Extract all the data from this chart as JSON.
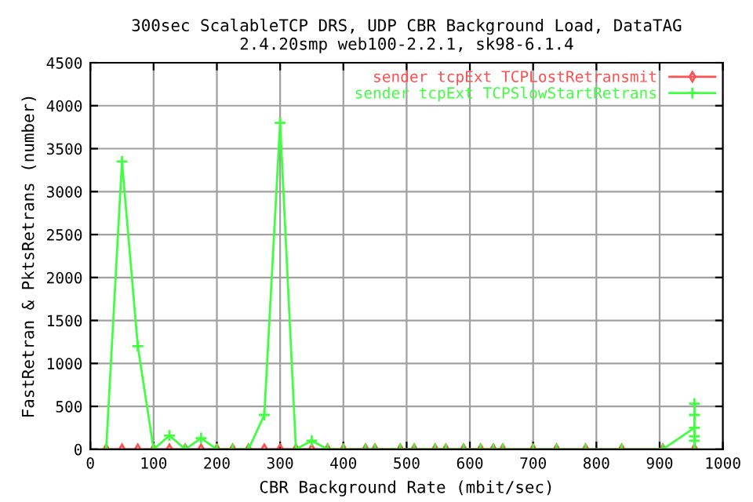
{
  "chart_data": {
    "type": "line",
    "title": "300sec ScalableTCP DRS, UDP CBR Background Load, DataTAG\n2.4.20smp web100-2.2.1, sk98-6.1.4",
    "xlabel": "CBR Background Rate (mbit/sec)",
    "ylabel": "FastRetran & PktsRetrans (number)",
    "xlim": [
      0,
      1000
    ],
    "xticks": [
      0,
      100,
      200,
      300,
      400,
      500,
      600,
      700,
      800,
      900,
      1000
    ],
    "ylim": [
      0,
      4500
    ],
    "yticks": [
      0,
      500,
      1000,
      1500,
      2000,
      2500,
      3000,
      3500,
      4000,
      4500
    ],
    "grid": true,
    "legend": "top right",
    "series": [
      {
        "name": "sender tcpExt TCPLostRetransmit",
        "color": "#ff5050",
        "marker": "diamond",
        "x": [
          25,
          50,
          75,
          100,
          125,
          150,
          175,
          200,
          225,
          250,
          275,
          300,
          325,
          350,
          375,
          400,
          435,
          450,
          490,
          512,
          545,
          562,
          590,
          617,
          637,
          652,
          700,
          737,
          783,
          840,
          905,
          955
        ],
        "values": [
          0,
          0,
          0,
          0,
          0,
          0,
          0,
          0,
          0,
          0,
          0,
          0,
          0,
          0,
          0,
          0,
          0,
          0,
          0,
          0,
          0,
          0,
          0,
          0,
          0,
          0,
          0,
          0,
          0,
          0,
          0,
          0
        ]
      },
      {
        "name": "sender tcpExt TCPSlowStartRetrans",
        "color": "#40ff40",
        "marker": "cross",
        "x": [
          25,
          50,
          75,
          100,
          125,
          150,
          175,
          200,
          225,
          250,
          275,
          300,
          325,
          350,
          375,
          400,
          435,
          450,
          490,
          512,
          545,
          562,
          590,
          617,
          637,
          652,
          700,
          737,
          783,
          840,
          905,
          955,
          955,
          955,
          955,
          955,
          955
        ],
        "values": [
          0,
          3350,
          1200,
          0,
          160,
          0,
          130,
          0,
          0,
          0,
          400,
          3800,
          0,
          100,
          0,
          0,
          0,
          0,
          0,
          0,
          0,
          0,
          0,
          0,
          0,
          0,
          0,
          0,
          0,
          0,
          0,
          250,
          530,
          400,
          150,
          100,
          0
        ]
      }
    ]
  }
}
